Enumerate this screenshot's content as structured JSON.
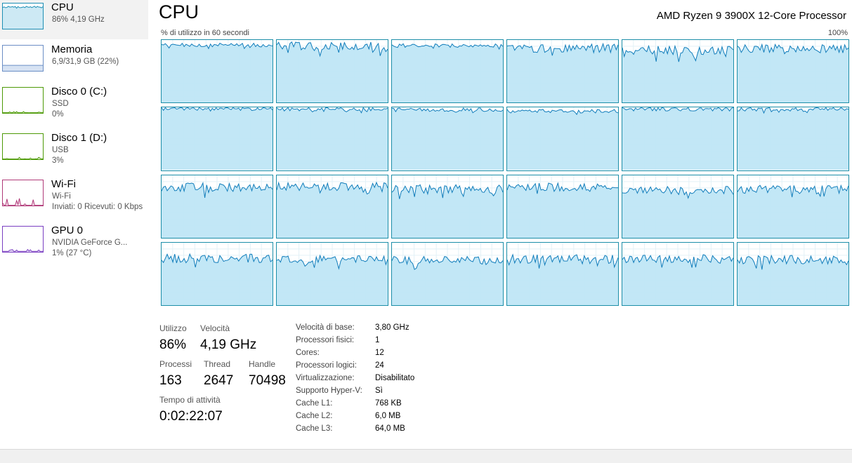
{
  "sidebar": {
    "items": [
      {
        "title": "CPU",
        "sub1": "86% 4,19 GHz",
        "sub2": "",
        "selected": true,
        "kind": "cpu",
        "color": "#1e8fb5",
        "fill": "#cde9f4",
        "level": 0.86
      },
      {
        "title": "Memoria",
        "sub1": "6,9/31,9 GB (22%)",
        "sub2": "",
        "selected": false,
        "kind": "mem",
        "color": "#6b8ec5",
        "fill": "#d6e2f3",
        "level": 0.22
      },
      {
        "title": "Disco 0 (C:)",
        "sub1": "SSD",
        "sub2": "0%",
        "selected": false,
        "kind": "disk",
        "color": "#4d9a06",
        "fill": "#e5f2d6",
        "level": 0.0
      },
      {
        "title": "Disco 1 (D:)",
        "sub1": "USB",
        "sub2": "3%",
        "selected": false,
        "kind": "disk",
        "color": "#4d9a06",
        "fill": "#e5f2d6",
        "level": 0.03
      },
      {
        "title": "Wi-Fi",
        "sub1": "Wi-Fi",
        "sub2": "Inviati: 0 Ricevuti: 0 Kbps",
        "selected": false,
        "kind": "net",
        "color": "#b03a78",
        "fill": "#f5dcea",
        "level": 0.1
      },
      {
        "title": "GPU 0",
        "sub1": "NVIDIA GeForce G...",
        "sub2": "1% (27 °C)",
        "selected": false,
        "kind": "gpu",
        "color": "#7a3fc2",
        "fill": "#e6dcf5",
        "level": 0.01
      }
    ]
  },
  "header": {
    "title": "CPU",
    "processor": "AMD Ryzen 9 3900X 12-Core Processor",
    "graph_caption": "% di utilizzo in 60 secondi",
    "graph_max": "100%"
  },
  "cores": {
    "line_color": "#117dbb",
    "fill_color": "#bfe6f5",
    "border_color": "#1c8ea8",
    "grid_color": "#e3f1f7",
    "levels": [
      0.92,
      0.9,
      0.91,
      0.87,
      0.84,
      0.86,
      0.98,
      0.97,
      0.96,
      0.94,
      0.97,
      0.97,
      0.81,
      0.82,
      0.78,
      0.81,
      0.76,
      0.77,
      0.75,
      0.74,
      0.73,
      0.74,
      0.74,
      0.73
    ]
  },
  "stats": {
    "utilizzo_label": "Utilizzo",
    "utilizzo_value": "86%",
    "velocita_label": "Velocità",
    "velocita_value": "4,19 GHz",
    "processi_label": "Processi",
    "processi_value": "163",
    "thread_label": "Thread",
    "thread_value": "2647",
    "handle_label": "Handle",
    "handle_value": "70498",
    "uptime_label": "Tempo di attività",
    "uptime_value": "0:02:22:07"
  },
  "info": [
    {
      "label": "Velocità di base:",
      "value": "3,80 GHz"
    },
    {
      "label": "Processori fisici:",
      "value": "1"
    },
    {
      "label": "Cores:",
      "value": "12"
    },
    {
      "label": "Processori logici:",
      "value": "24"
    },
    {
      "label": "Virtualizzazione:",
      "value": "Disabilitato"
    },
    {
      "label": "Supporto Hyper-V:",
      "value": "Sì"
    },
    {
      "label": "Cache L1:",
      "value": "768 KB"
    },
    {
      "label": "Cache L2:",
      "value": "6,0 MB"
    },
    {
      "label": "Cache L3:",
      "value": "64,0 MB"
    }
  ]
}
